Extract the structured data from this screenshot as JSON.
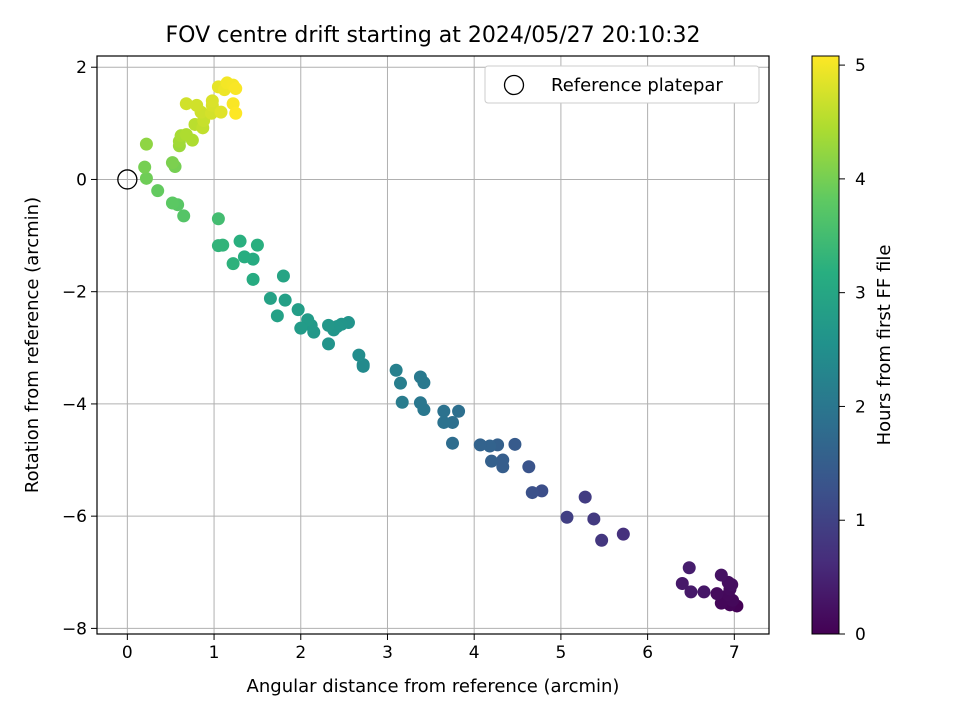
{
  "chart_data": {
    "type": "scatter",
    "title": "FOV centre drift starting at 2024/05/27 20:10:32",
    "xlabel": "Angular distance from reference (arcmin)",
    "ylabel": "Rotation from reference (arcmin)",
    "xlim": [
      -0.35,
      7.4
    ],
    "ylim": [
      -8.1,
      2.2
    ],
    "xticks": [
      0,
      1,
      2,
      3,
      4,
      5,
      6,
      7
    ],
    "yticks": [
      -8,
      -6,
      -4,
      -2,
      0,
      2
    ],
    "xtick_labels": [
      "0",
      "1",
      "2",
      "3",
      "4",
      "5",
      "6",
      "7"
    ],
    "ytick_labels": [
      "−8",
      "−6",
      "−4",
      "−2",
      "0",
      "2"
    ],
    "grid": true,
    "legend": {
      "position": "top-right",
      "entries": [
        {
          "label": "Reference platepar",
          "marker": "open-circle"
        }
      ]
    },
    "reference_point": {
      "x": 0,
      "y": 0
    },
    "colorbar": {
      "label": "Hours from first FF file",
      "range": [
        0,
        5.08
      ],
      "ticks": [
        0,
        1,
        2,
        3,
        4,
        5
      ],
      "tick_labels": [
        "0",
        "1",
        "2",
        "3",
        "4",
        "5"
      ],
      "colormap": "viridis"
    },
    "points": [
      {
        "x": 7.03,
        "y": -7.6,
        "c": 0.02
      },
      {
        "x": 6.95,
        "y": -7.58,
        "c": 0.05
      },
      {
        "x": 6.85,
        "y": -7.55,
        "c": 0.08
      },
      {
        "x": 6.98,
        "y": -7.5,
        "c": 0.1
      },
      {
        "x": 6.93,
        "y": -7.4,
        "c": 0.12
      },
      {
        "x": 6.8,
        "y": -7.38,
        "c": 0.15
      },
      {
        "x": 6.95,
        "y": -7.3,
        "c": 0.15
      },
      {
        "x": 6.97,
        "y": -7.22,
        "c": 0.2
      },
      {
        "x": 6.93,
        "y": -7.18,
        "c": 0.2
      },
      {
        "x": 6.85,
        "y": -7.05,
        "c": 0.25
      },
      {
        "x": 6.65,
        "y": -7.35,
        "c": 0.3
      },
      {
        "x": 6.5,
        "y": -7.35,
        "c": 0.35
      },
      {
        "x": 6.4,
        "y": -7.2,
        "c": 0.35
      },
      {
        "x": 6.48,
        "y": -6.92,
        "c": 0.4
      },
      {
        "x": 5.72,
        "y": -6.32,
        "c": 0.7
      },
      {
        "x": 5.47,
        "y": -6.43,
        "c": 0.8
      },
      {
        "x": 5.38,
        "y": -6.05,
        "c": 0.85
      },
      {
        "x": 5.28,
        "y": -5.66,
        "c": 0.9
      },
      {
        "x": 5.07,
        "y": -6.02,
        "c": 0.95
      },
      {
        "x": 4.78,
        "y": -5.55,
        "c": 1.2
      },
      {
        "x": 4.67,
        "y": -5.58,
        "c": 1.25
      },
      {
        "x": 4.63,
        "y": -5.12,
        "c": 1.3
      },
      {
        "x": 4.47,
        "y": -4.72,
        "c": 1.45
      },
      {
        "x": 4.33,
        "y": -5.12,
        "c": 1.5
      },
      {
        "x": 4.33,
        "y": -5.0,
        "c": 1.5
      },
      {
        "x": 4.2,
        "y": -5.02,
        "c": 1.55
      },
      {
        "x": 4.27,
        "y": -4.73,
        "c": 1.55
      },
      {
        "x": 4.18,
        "y": -4.75,
        "c": 1.6
      },
      {
        "x": 4.07,
        "y": -4.73,
        "c": 1.6
      },
      {
        "x": 3.75,
        "y": -4.7,
        "c": 1.8
      },
      {
        "x": 3.82,
        "y": -4.13,
        "c": 1.85
      },
      {
        "x": 3.75,
        "y": -4.33,
        "c": 1.85
      },
      {
        "x": 3.65,
        "y": -4.33,
        "c": 1.9
      },
      {
        "x": 3.65,
        "y": -4.13,
        "c": 1.9
      },
      {
        "x": 3.42,
        "y": -4.1,
        "c": 2.0
      },
      {
        "x": 3.38,
        "y": -3.98,
        "c": 2.0
      },
      {
        "x": 3.42,
        "y": -3.62,
        "c": 2.05
      },
      {
        "x": 3.38,
        "y": -3.52,
        "c": 2.05
      },
      {
        "x": 3.17,
        "y": -3.97,
        "c": 2.1
      },
      {
        "x": 3.15,
        "y": -3.63,
        "c": 2.15
      },
      {
        "x": 3.1,
        "y": -3.4,
        "c": 2.2
      },
      {
        "x": 2.72,
        "y": -3.33,
        "c": 2.4
      },
      {
        "x": 2.72,
        "y": -3.3,
        "c": 2.4
      },
      {
        "x": 2.67,
        "y": -3.13,
        "c": 2.45
      },
      {
        "x": 2.32,
        "y": -2.93,
        "c": 2.6
      },
      {
        "x": 2.55,
        "y": -2.55,
        "c": 2.6
      },
      {
        "x": 2.47,
        "y": -2.58,
        "c": 2.62
      },
      {
        "x": 2.42,
        "y": -2.62,
        "c": 2.65
      },
      {
        "x": 2.38,
        "y": -2.68,
        "c": 2.65
      },
      {
        "x": 2.32,
        "y": -2.6,
        "c": 2.68
      },
      {
        "x": 2.15,
        "y": -2.72,
        "c": 2.7
      },
      {
        "x": 2.12,
        "y": -2.6,
        "c": 2.72
      },
      {
        "x": 2.08,
        "y": -2.5,
        "c": 2.75
      },
      {
        "x": 2.0,
        "y": -2.65,
        "c": 2.75
      },
      {
        "x": 1.97,
        "y": -2.32,
        "c": 2.8
      },
      {
        "x": 1.82,
        "y": -2.15,
        "c": 2.85
      },
      {
        "x": 1.65,
        "y": -2.12,
        "c": 2.9
      },
      {
        "x": 1.8,
        "y": -1.72,
        "c": 2.95
      },
      {
        "x": 1.73,
        "y": -2.43,
        "c": 2.88
      },
      {
        "x": 1.45,
        "y": -1.78,
        "c": 3.1
      },
      {
        "x": 1.45,
        "y": -1.42,
        "c": 3.12
      },
      {
        "x": 1.35,
        "y": -1.38,
        "c": 3.15
      },
      {
        "x": 1.3,
        "y": -1.1,
        "c": 3.2
      },
      {
        "x": 1.5,
        "y": -1.17,
        "c": 3.2
      },
      {
        "x": 1.22,
        "y": -1.5,
        "c": 3.25
      },
      {
        "x": 1.1,
        "y": -1.17,
        "c": 3.3
      },
      {
        "x": 1.05,
        "y": -1.18,
        "c": 3.3
      },
      {
        "x": 1.05,
        "y": -0.7,
        "c": 3.5
      },
      {
        "x": 0.65,
        "y": -0.65,
        "c": 3.7
      },
      {
        "x": 0.58,
        "y": -0.45,
        "c": 3.75
      },
      {
        "x": 0.52,
        "y": -0.42,
        "c": 3.78
      },
      {
        "x": 0.35,
        "y": -0.2,
        "c": 3.85
      },
      {
        "x": 0.22,
        "y": 0.02,
        "c": 3.95
      },
      {
        "x": 0.2,
        "y": 0.22,
        "c": 4.0
      },
      {
        "x": 0.55,
        "y": 0.23,
        "c": 4.0
      },
      {
        "x": 0.52,
        "y": 0.3,
        "c": 4.05
      },
      {
        "x": 0.22,
        "y": 0.63,
        "c": 4.2
      },
      {
        "x": 0.6,
        "y": 0.6,
        "c": 4.3
      },
      {
        "x": 0.6,
        "y": 0.68,
        "c": 4.35
      },
      {
        "x": 0.62,
        "y": 0.78,
        "c": 4.4
      },
      {
        "x": 0.68,
        "y": 0.8,
        "c": 4.45
      },
      {
        "x": 0.75,
        "y": 0.7,
        "c": 4.45
      },
      {
        "x": 0.78,
        "y": 0.98,
        "c": 4.55
      },
      {
        "x": 0.87,
        "y": 0.92,
        "c": 4.6
      },
      {
        "x": 0.88,
        "y": 1.05,
        "c": 4.65
      },
      {
        "x": 0.85,
        "y": 1.2,
        "c": 4.7
      },
      {
        "x": 0.8,
        "y": 1.32,
        "c": 4.72
      },
      {
        "x": 0.68,
        "y": 1.35,
        "c": 4.72
      },
      {
        "x": 0.97,
        "y": 1.18,
        "c": 4.75
      },
      {
        "x": 0.98,
        "y": 1.32,
        "c": 4.78
      },
      {
        "x": 0.98,
        "y": 1.4,
        "c": 4.8
      },
      {
        "x": 1.08,
        "y": 1.2,
        "c": 4.85
      },
      {
        "x": 1.05,
        "y": 1.65,
        "c": 4.9
      },
      {
        "x": 1.12,
        "y": 1.6,
        "c": 4.95
      },
      {
        "x": 1.15,
        "y": 1.72,
        "c": 5.0
      },
      {
        "x": 1.22,
        "y": 1.68,
        "c": 5.02
      },
      {
        "x": 1.25,
        "y": 1.62,
        "c": 5.05
      },
      {
        "x": 1.22,
        "y": 1.35,
        "c": 5.05
      },
      {
        "x": 1.25,
        "y": 1.18,
        "c": 5.08
      }
    ]
  }
}
